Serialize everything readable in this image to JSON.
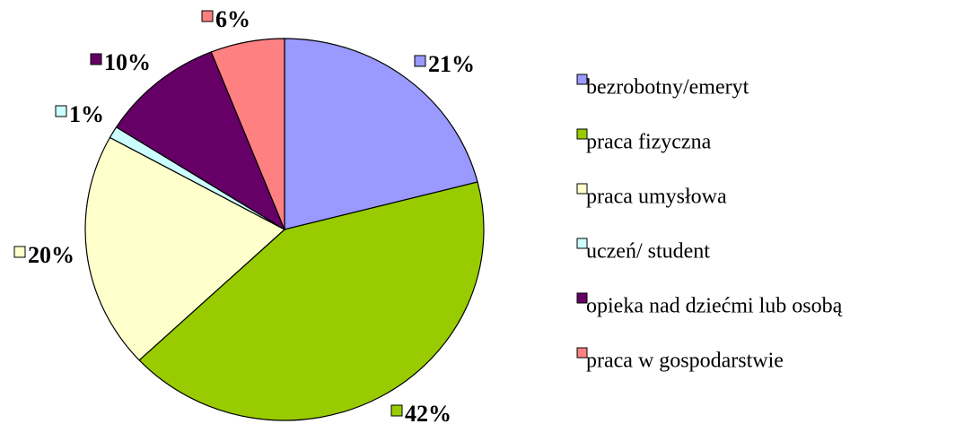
{
  "chart_data": {
    "type": "pie",
    "categories": [
      "bezrobotny/emeryt",
      "praca fizyczna",
      "praca umysłowa",
      "uczeń/ student",
      "opieka nad dziećmi lub osobą",
      "praca w gospodarstwie"
    ],
    "values": [
      21,
      42,
      20,
      1,
      10,
      6
    ],
    "value_labels": [
      "21%",
      "42%",
      "20%",
      "1%",
      "10%",
      "6%"
    ],
    "colors": [
      "#9999ff",
      "#99cc00",
      "#ffffcc",
      "#ccffff",
      "#660066",
      "#ff8080"
    ],
    "legend": "right"
  }
}
